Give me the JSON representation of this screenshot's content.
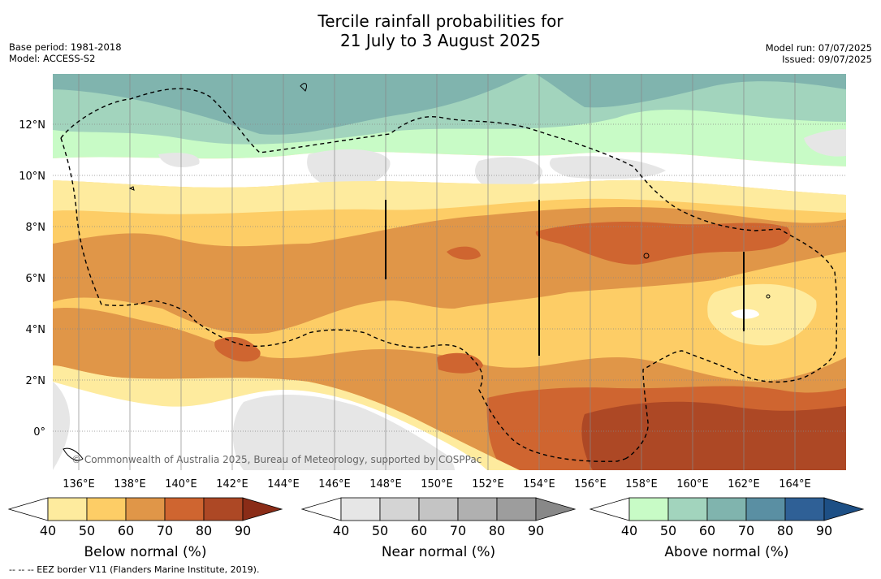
{
  "header": {
    "title_line1": "Tercile rainfall probabilities for",
    "title_line2": "21 July to 3 August 2025",
    "base_period": "Base period: 1981-2018",
    "model": "Model: ACCESS-S2",
    "model_run": "Model run: 07/07/2025",
    "issued": "Issued: 09/07/2025"
  },
  "map": {
    "lat_labels": [
      "12°N",
      "10°N",
      "8°N",
      "6°N",
      "4°N",
      "2°N",
      "0°"
    ],
    "lon_labels": [
      "136°E",
      "138°E",
      "140°E",
      "142°E",
      "144°E",
      "146°E",
      "148°E",
      "150°E",
      "152°E",
      "154°E",
      "156°E",
      "158°E",
      "160°E",
      "162°E",
      "164°E"
    ],
    "copyright": "© Commonwealth of Australia 2025, Bureau of Meteorology, supported by COSPPac"
  },
  "colorbars": [
    {
      "title": "Below normal (%)",
      "ticks": [
        "40",
        "50",
        "60",
        "70",
        "80",
        "90"
      ],
      "colors": [
        "#ffffff",
        "#feeb9e",
        "#fdcd66",
        "#e09648",
        "#cf6530",
        "#ad4825",
        "#8a2c17"
      ]
    },
    {
      "title": "Near normal (%)",
      "ticks": [
        "40",
        "50",
        "60",
        "70",
        "80",
        "90"
      ],
      "colors": [
        "#ffffff",
        "#e6e6e6",
        "#d4d4d4",
        "#c4c4c4",
        "#b0b0b0",
        "#9d9d9d",
        "#888888"
      ]
    },
    {
      "title": "Above normal (%)",
      "ticks": [
        "40",
        "50",
        "60",
        "70",
        "80",
        "90"
      ],
      "colors": [
        "#ffffff",
        "#c8fbc6",
        "#a2d4bd",
        "#80b4ae",
        "#5a8fa3",
        "#2f6096",
        "#1d4f85"
      ]
    }
  ],
  "footnote": "--  --  -- EEZ border V11 (Flanders Marine Institute, 2019)."
}
